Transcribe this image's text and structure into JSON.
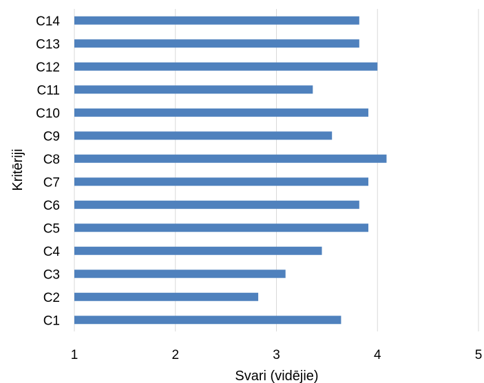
{
  "chart_data": {
    "type": "bar",
    "orientation": "horizontal",
    "categories": [
      "C1",
      "C2",
      "C3",
      "C4",
      "C5",
      "C6",
      "C7",
      "C8",
      "C9",
      "C10",
      "C11",
      "C12",
      "C13",
      "C14"
    ],
    "values": [
      3.64,
      2.82,
      3.09,
      3.45,
      3.91,
      3.82,
      3.91,
      4.09,
      3.55,
      3.91,
      3.36,
      4.0,
      3.82,
      3.82
    ],
    "xlabel": "Svari (vidējie)",
    "ylabel": "Kritēriji",
    "xlim": [
      1,
      5
    ],
    "xticks": [
      "1",
      "2",
      "3",
      "4",
      "5"
    ],
    "grid": "vertical",
    "legend": "none",
    "bar_color": "#4f81bd",
    "grid_color": "#d9d9d9"
  }
}
